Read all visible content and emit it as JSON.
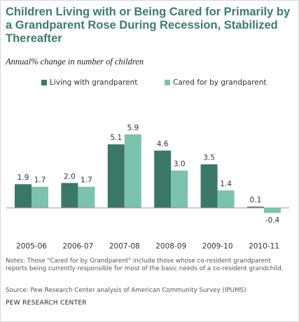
{
  "chart_data": {
    "type": "bar",
    "title": "Children Living with or Being Cared for Primarily by a Grandparent Rose During Recession, Stabilized Thereafter",
    "subtitle": "Annual% change in number of children",
    "categories": [
      "2005-06",
      "2006-07",
      "2007-08",
      "2008-09",
      "2009-10",
      "2010-11"
    ],
    "series": [
      {
        "name": "Living with grandparent",
        "color": "#3a7767",
        "values": [
          1.9,
          2.0,
          5.1,
          4.6,
          3.5,
          0.1
        ]
      },
      {
        "name": "Cared for by grandparent",
        "color": "#7cc3ad",
        "values": [
          1.7,
          1.7,
          5.9,
          3.0,
          1.4,
          -0.4
        ]
      }
    ],
    "data_labels": [
      [
        "1.9",
        "2.0",
        "5.1",
        "4.6",
        "3.5",
        "0.1"
      ],
      [
        "1.7",
        "1.7",
        "5.9",
        "3.0",
        "1.4",
        "-0.4"
      ]
    ],
    "legend_position": "top",
    "grid": false
  },
  "notes": "Notes: Those \"Cared for by Grandparent\" include those whose co-resident grandparent reports being currently responsible for most of the basic needs of a co-resident grandchild.",
  "source": "Source: Pew Research Center analysis of American Community Survey (IPUMS)",
  "footer": "PEW RESEARCH CENTER",
  "colors": {
    "title": "#3a7d6e",
    "axis": "#9a9a9a"
  }
}
